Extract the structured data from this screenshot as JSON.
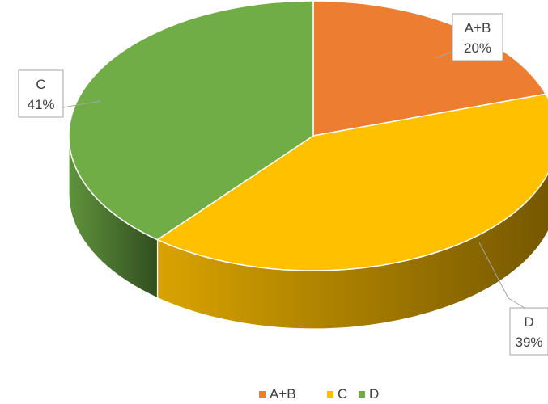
{
  "chart_data": {
    "type": "pie",
    "style": "3d",
    "title": "",
    "categories": [
      "A+B",
      "C",
      "D"
    ],
    "values": [
      20,
      41,
      39
    ],
    "labels": [
      {
        "category": "A+B",
        "percent": "20%"
      },
      {
        "category": "C",
        "percent": "41%"
      },
      {
        "category": "D",
        "percent": "39%"
      }
    ],
    "colors": [
      "#ED7D31",
      "#FFC000",
      "#70AD47"
    ],
    "legend": {
      "position": "bottom",
      "entries": [
        "A+B",
        "C",
        "D"
      ]
    }
  }
}
